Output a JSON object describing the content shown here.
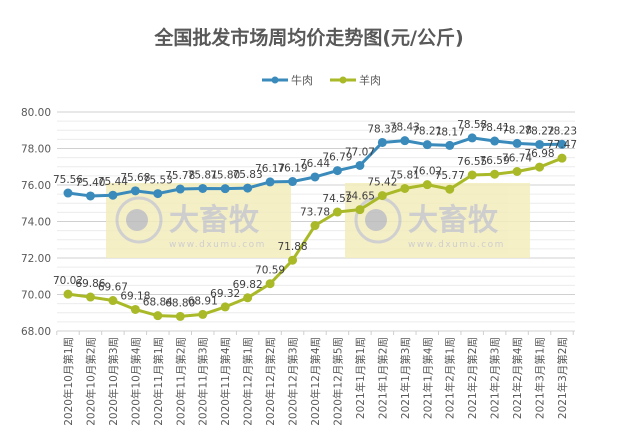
{
  "chart_data": {
    "type": "line",
    "title": "全国批发市场周均价走势图(元/公斤)",
    "categories": [
      "2020年10月第1周",
      "2020年10月第2周",
      "2020年10月第3周",
      "2020年10月第4周",
      "2020年11月第1周",
      "2020年11月第2周",
      "2020年11月第3周",
      "2020年11月第4周",
      "2020年12月第1周",
      "2020年12月第2周",
      "2020年12月第3周",
      "2020年12月第4周",
      "2020年12月第5周",
      "2021年1月第1周",
      "2021年1月第2周",
      "2021年1月第3周",
      "2021年1月第4周",
      "2021年2月第1周",
      "2021年2月第2周",
      "2021年2月第3周",
      "2021年2月第4周",
      "2021年3月第1周",
      "2021年3月第2周"
    ],
    "series": [
      {
        "name": "牛肉",
        "color": "#3a8bbb",
        "values": [
          75.56,
          75.4,
          75.44,
          75.68,
          75.53,
          75.78,
          75.81,
          75.8,
          75.83,
          76.17,
          76.19,
          76.44,
          76.79,
          77.07,
          78.33,
          78.43,
          78.21,
          78.17,
          78.58,
          78.41,
          78.28,
          78.22,
          78.23
        ]
      },
      {
        "name": "羊肉",
        "color": "#a9b928",
        "values": [
          70.02,
          69.86,
          69.67,
          69.18,
          68.84,
          68.8,
          68.91,
          69.32,
          69.82,
          70.59,
          71.88,
          73.78,
          74.52,
          74.65,
          75.42,
          75.81,
          76.02,
          75.77,
          76.55,
          76.59,
          76.74,
          76.98,
          77.47
        ]
      }
    ],
    "ylim": [
      68,
      80
    ],
    "yticks": [
      "68.00",
      "70.00",
      "72.00",
      "74.00",
      "76.00",
      "78.00",
      "80.00"
    ],
    "grid": true,
    "legend": "top-center",
    "watermark": {
      "name": "大畜牧",
      "url": "www.dxumu.com"
    }
  }
}
